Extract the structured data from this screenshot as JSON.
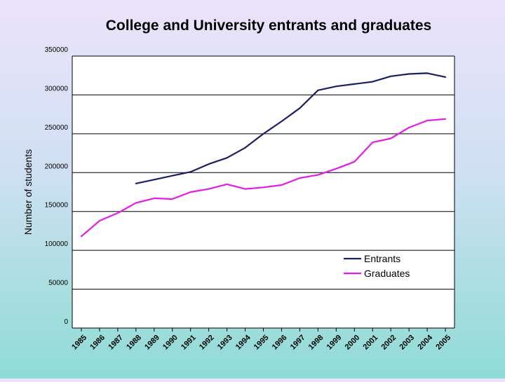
{
  "chart_data": {
    "type": "line",
    "title": "College and University entrants and graduates",
    "xlabel": "",
    "ylabel": "Number of students",
    "categories": [
      "1985",
      "1986",
      "1987",
      "1988",
      "1989",
      "1990",
      "1991",
      "1992",
      "1993",
      "1994",
      "1995",
      "1996",
      "1997",
      "1998",
      "1999",
      "2000",
      "2001",
      "2002",
      "2003",
      "2004",
      "2005"
    ],
    "ylim": [
      0,
      350000
    ],
    "yticks": [
      0,
      50000,
      100000,
      150000,
      200000,
      250000,
      300000,
      350000
    ],
    "grid": true,
    "legend_position": "bottom-right",
    "series": [
      {
        "name": "Entrants",
        "color": "#1b1f63",
        "values": [
          null,
          null,
          null,
          186000,
          191000,
          196000,
          201000,
          211000,
          219000,
          232000,
          250000,
          266000,
          283000,
          306000,
          311000,
          314000,
          317000,
          324000,
          327000,
          328000,
          323000
        ]
      },
      {
        "name": "Graduates",
        "color": "#e21de6",
        "values": [
          118000,
          138000,
          148000,
          161000,
          167000,
          166000,
          175000,
          179000,
          185000,
          179000,
          181000,
          184000,
          193000,
          197000,
          205000,
          214000,
          239000,
          244000,
          258000,
          267000,
          269000
        ]
      }
    ]
  }
}
